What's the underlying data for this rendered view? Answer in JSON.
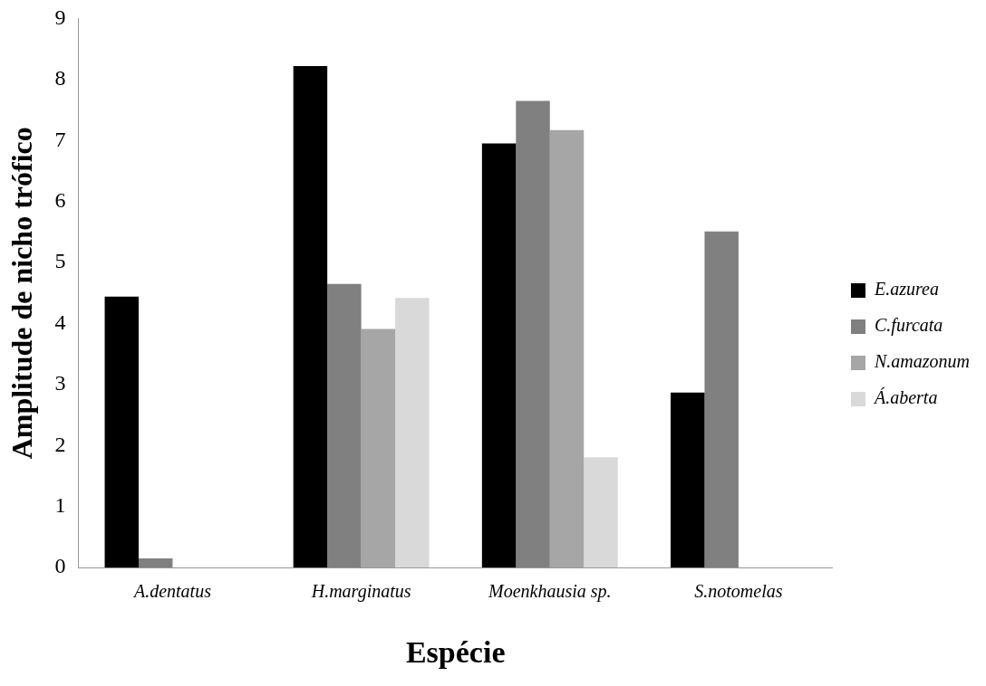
{
  "chart_data": {
    "type": "bar",
    "xlabel": "Espécie",
    "ylabel": "Amplitude de nicho trófico",
    "categories": [
      "A.dentatus",
      "H.marginatus",
      "Moenkhausia sp.",
      "S.notomelas"
    ],
    "series": [
      {
        "name": "E.azurea",
        "color": "#000000",
        "values": [
          4.44,
          8.22,
          6.95,
          2.87
        ]
      },
      {
        "name": "C.furcata",
        "color": "#808080",
        "values": [
          0.15,
          4.65,
          7.65,
          5.51
        ]
      },
      {
        "name": "N.amazonum",
        "color": "#a6a6a6",
        "values": [
          null,
          3.91,
          7.17,
          null
        ]
      },
      {
        "name": "Á.aberta",
        "color": "#d9d9d9",
        "values": [
          null,
          4.42,
          1.81,
          null
        ]
      }
    ],
    "ylim": [
      0,
      9
    ],
    "yticks": [
      0,
      1,
      2,
      3,
      4,
      5,
      6,
      7,
      8,
      9
    ],
    "grid": false,
    "legend": "right"
  }
}
